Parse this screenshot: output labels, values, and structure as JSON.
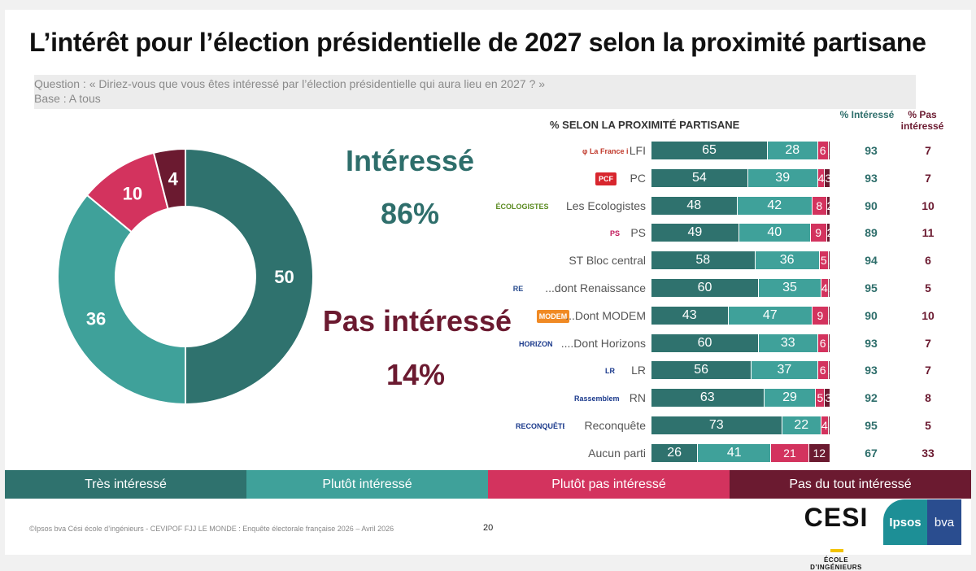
{
  "title": "L’intérêt pour l’élection présidentielle de 2027 selon la proximité partisane",
  "question": {
    "line1": "Question : « Diriez-vous que vous êtes intéressé par l’élection présidentielle qui aura lieu en 2027 ? »",
    "line2": "Base : A tous"
  },
  "summary": {
    "interested_label": "Intéressé",
    "interested_pct": "86%",
    "not_interested_label": "Pas intéressé",
    "not_interested_pct": "14%"
  },
  "colors": {
    "tres": "#2f726e",
    "plutot": "#3fa19a",
    "plutot_pas": "#d3335e",
    "pas_du_tout": "#6b1a30"
  },
  "breakdown": {
    "header": "% SELON LA PROXIMITÉ PARTISANE",
    "col_interesse": "% Intéressé",
    "col_pas_interesse": "% Pas intéressé"
  },
  "legend": [
    "Très intéressé",
    "Plutôt intéressé",
    "Plutôt pas intéressé",
    "Pas du tout intéressé"
  ],
  "chart_data": [
    {
      "type": "pie",
      "subtype": "donut",
      "categories": [
        "Très intéressé",
        "Plutôt intéressé",
        "Plutôt pas intéressé",
        "Pas du tout intéressé"
      ],
      "values": [
        50,
        36,
        10,
        4
      ]
    },
    {
      "type": "bar",
      "orientation": "horizontal",
      "stacked": true,
      "title": "% SELON LA PROXIMITÉ PARTISANE",
      "categories": [
        "LFI",
        "PC",
        "Les Ecologistes",
        "PS",
        "ST Bloc central",
        "...dont Renaissance",
        "...Dont MODEM",
        "....Dont Horizons",
        "LR",
        "RN",
        "Reconquête",
        "Aucun parti"
      ],
      "series": [
        {
          "name": "Très intéressé",
          "values": [
            65,
            54,
            48,
            49,
            58,
            60,
            43,
            60,
            56,
            63,
            73,
            26
          ]
        },
        {
          "name": "Plutôt intéressé",
          "values": [
            28,
            39,
            42,
            40,
            36,
            35,
            47,
            33,
            37,
            29,
            22,
            41
          ]
        },
        {
          "name": "Plutôt pas intéressé",
          "values": [
            6,
            4,
            8,
            9,
            5,
            4,
            9,
            6,
            6,
            5,
            4,
            21
          ]
        },
        {
          "name": "Pas du tout intéressé",
          "values": [
            1,
            3,
            2,
            2,
            1,
            1,
            1,
            1,
            1,
            3,
            1,
            12
          ]
        }
      ],
      "interesse": [
        93,
        93,
        90,
        89,
        94,
        95,
        90,
        93,
        93,
        92,
        95,
        67
      ],
      "pas_interesse": [
        7,
        7,
        10,
        11,
        6,
        5,
        10,
        7,
        7,
        8,
        5,
        33
      ]
    }
  ],
  "party_logos": [
    {
      "name": "lfi-logo",
      "text": "φ La France insoumise"
    },
    {
      "name": "pcf-logo",
      "text": "PCF"
    },
    {
      "name": "ecologistes-logo",
      "text": "ÉCOLOGISTES"
    },
    {
      "name": "ps-logo",
      "text": "PS"
    },
    null,
    {
      "name": "renaissance-logo",
      "text": "RE"
    },
    {
      "name": "modem-logo",
      "text": "MODEM"
    },
    {
      "name": "horizons-logo",
      "text": "HORIZONS"
    },
    {
      "name": "lr-logo",
      "text": "LR"
    },
    {
      "name": "rn-logo",
      "text": "Rassemblement National"
    },
    {
      "name": "reconquete-logo",
      "text": "RECONQUÊTE!"
    },
    null
  ],
  "footer": {
    "source": "©Ipsos bva  Cési école d’ingénieurs - CEVIPOF FJJ LE MONDE : Enquête électorale française 2026 – Avril 2026",
    "page": "20",
    "cesi_word": "CESI",
    "cesi_sub": "ÉCOLE D’INGÉNIEURS",
    "ipsos": "Ipsos",
    "bva": "bva"
  }
}
